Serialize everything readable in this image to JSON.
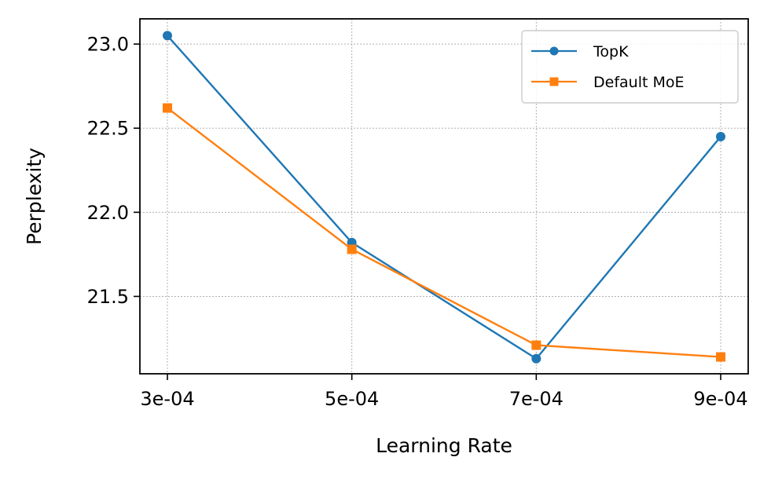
{
  "chart_data": {
    "type": "line",
    "title": "",
    "xlabel": "Learning Rate",
    "ylabel": "Perplexity",
    "categories": [
      "3e-04",
      "5e-04",
      "7e-04",
      "9e-04"
    ],
    "y_ticks": [
      21.5,
      22.0,
      22.5,
      23.0
    ],
    "y_tick_labels": [
      "21.5",
      "22.0",
      "22.5",
      "23.0"
    ],
    "ylim": [
      21.04,
      23.15
    ],
    "grid": true,
    "legend_position": "top-right",
    "series": [
      {
        "name": "TopK",
        "values": [
          23.05,
          21.82,
          21.13,
          22.45
        ],
        "color": "#1f77b4",
        "marker": "circle"
      },
      {
        "name": "Default MoE",
        "values": [
          22.62,
          21.78,
          21.21,
          21.14
        ],
        "color": "#ff7f0e",
        "marker": "square"
      }
    ]
  }
}
